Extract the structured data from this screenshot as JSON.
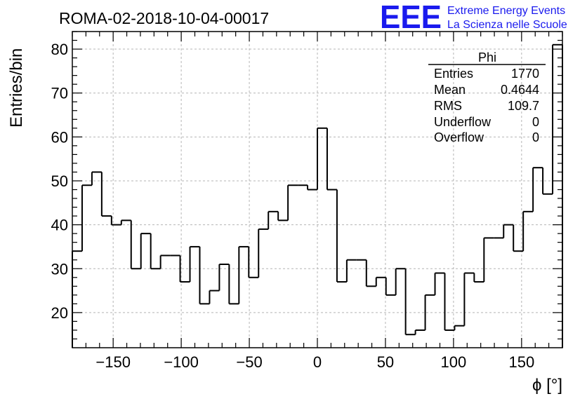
{
  "chart_data": {
    "type": "bar",
    "title": "ROMA-02-2018-10-04-00017",
    "xlabel": "ϕ [°]",
    "ylabel": "Entries/bin",
    "xlim": [
      -180,
      180
    ],
    "ylim": [
      12,
      84
    ],
    "bin_width": 7.2,
    "x_ticks": [
      -150,
      -100,
      -50,
      0,
      50,
      100,
      150
    ],
    "x_tick_labels": [
      "−150",
      "−100",
      "−50",
      "0",
      "50",
      "100",
      "150"
    ],
    "y_ticks": [
      20,
      30,
      40,
      50,
      60,
      70,
      80
    ],
    "y_tick_labels": [
      "20",
      "30",
      "40",
      "50",
      "60",
      "70",
      "80"
    ],
    "grid": true,
    "line_color": "#000000",
    "values": [
      34,
      49,
      52,
      42,
      40,
      41,
      30,
      38,
      30,
      33,
      33,
      27,
      35,
      22,
      25,
      31,
      22,
      35,
      28,
      39,
      43,
      41,
      49,
      49,
      48,
      62,
      48,
      27,
      32,
      32,
      26,
      28,
      24,
      30,
      15,
      16,
      24,
      29,
      16,
      17,
      29,
      27,
      37,
      37,
      40,
      34,
      43,
      53,
      47,
      81
    ]
  },
  "stats": {
    "name": "Phi",
    "rows": [
      {
        "label": "Entries",
        "value": "1770"
      },
      {
        "label": "Mean",
        "value": "0.4644"
      },
      {
        "label": "RMS",
        "value": "109.7"
      },
      {
        "label": "Underflow",
        "value": "0"
      },
      {
        "label": "Overflow",
        "value": "0"
      }
    ]
  },
  "logo": {
    "mark": "EEE",
    "line1": "Extreme Energy Events",
    "line2": "La Scienza nelle Scuole",
    "color": "#1a1aee"
  }
}
